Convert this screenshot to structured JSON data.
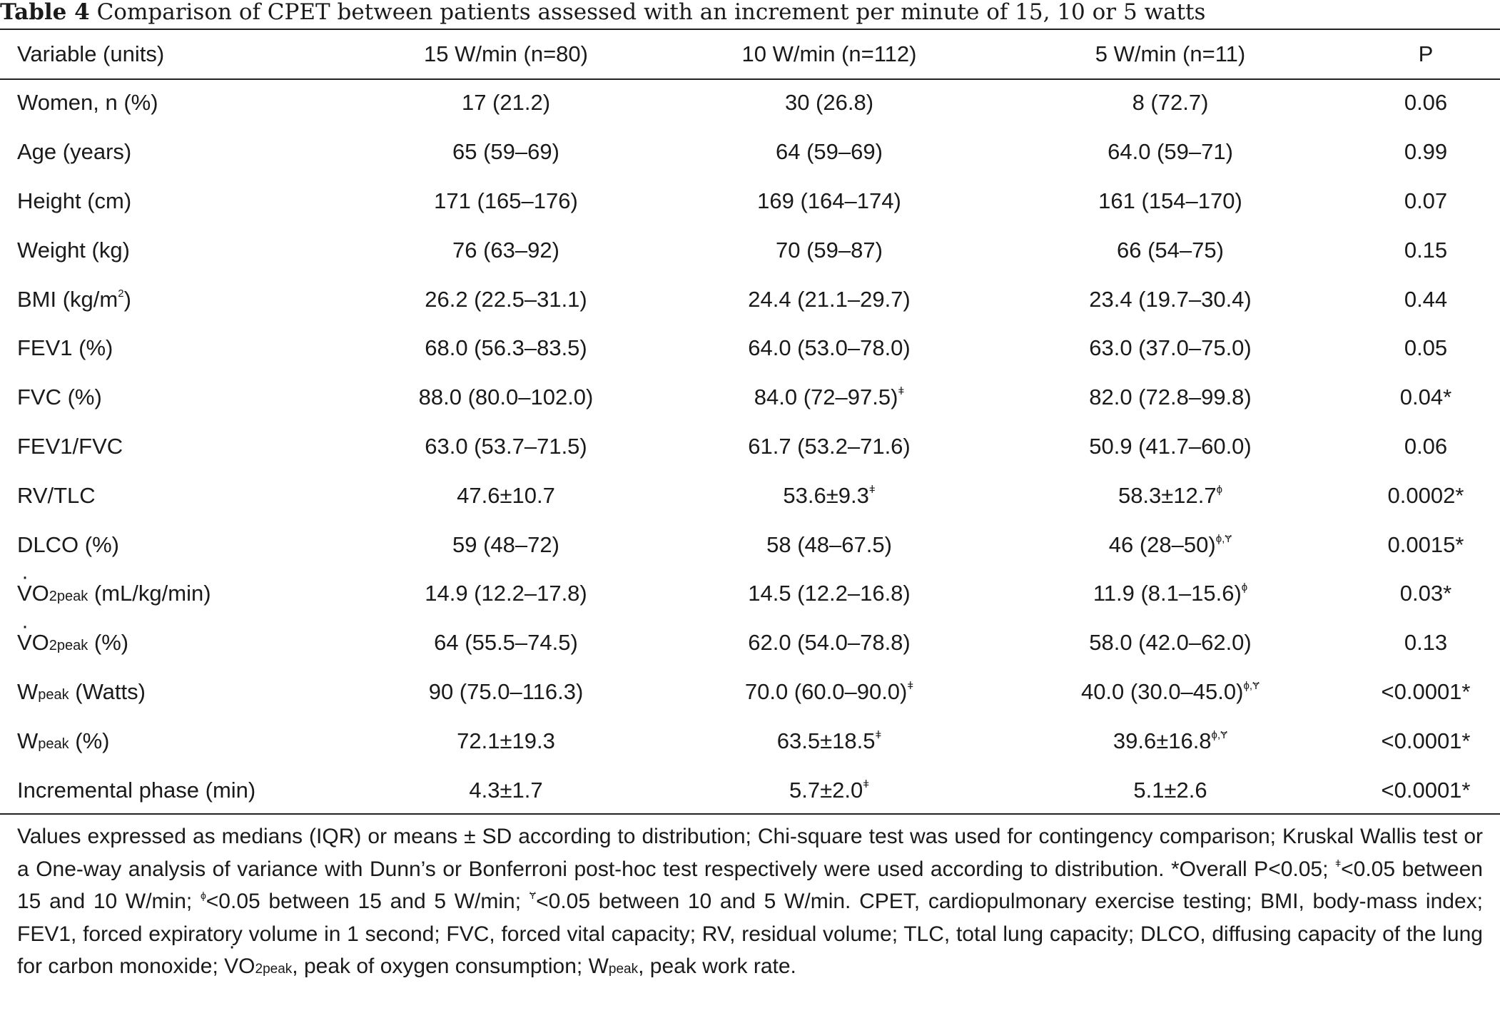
{
  "caption": {
    "label": "Table 4",
    "text": " Comparison of CPET between patients assessed with an increment per minute of 15, 10 or 5 watts"
  },
  "header": [
    "Variable (units)",
    "15 W/min (n=80)",
    "10 W/min (n=112)",
    "5 W/min (n=11)",
    "P"
  ],
  "rows": [
    {
      "var": "Women, n (%)",
      "c1": "17 (21.2)",
      "c2": "30 (26.8)",
      "c3": "8 (72.7)",
      "p": "0.06"
    },
    {
      "var": "Age (years)",
      "c1": "65 (59–69)",
      "c2": "64 (59–69)",
      "c3": "64.0 (59–71)",
      "p": "0.99"
    },
    {
      "var": "Height (cm)",
      "c1": "171 (165–176)",
      "c2": "169 (164–174)",
      "c3": "161 (154–170)",
      "p": "0.07"
    },
    {
      "var": "Weight (kg)",
      "c1": "76 (63–92)",
      "c2": "70 (59–87)",
      "c3": "66 (54–75)",
      "p": "0.15"
    },
    {
      "var": "BMI (kg/m",
      "var_sup": "2",
      "var_after": ")",
      "c1": "26.2 (22.5–31.1)",
      "c2": "24.4 (21.1–29.7)",
      "c3": "23.4 (19.7–30.4)",
      "p": "0.44"
    },
    {
      "var": "FEV1 (%)",
      "c1": "68.0 (56.3–83.5)",
      "c2": "64.0 (53.0–78.0)",
      "c3": "63.0 (37.0–75.0)",
      "p": "0.05"
    },
    {
      "var": "FVC (%)",
      "c1": "88.0 (80.0–102.0)",
      "c2": "84.0 (72–97.5)",
      "c2_sup": "ǂ",
      "c3": "82.0 (72.8–99.8)",
      "p": "0.04*"
    },
    {
      "var": "FEV1/FVC",
      "c1": "63.0 (53.7–71.5)",
      "c2": "61.7 (53.2–71.6)",
      "c3": "50.9 (41.7–60.0)",
      "p": "0.06"
    },
    {
      "var": "RV/TLC",
      "c1": "47.6±10.7",
      "c2": "53.6±9.3",
      "c2_sup": "ǂ",
      "c3": "58.3±12.7",
      "c3_sup": "ϕ",
      "p": "0.0002*"
    },
    {
      "var": "DLCO (%)",
      "c1": "59 (48–72)",
      "c2": "58 (48–67.5)",
      "c3": "46 (28–50)",
      "c3_sup": "ϕ,Ɏ",
      "p": "0.0015*"
    },
    {
      "var_main": "VO",
      "var_sub": "2peak",
      "var": " (mL/kg/min)",
      "c1": "14.9 (12.2–17.8)",
      "c2": "14.5 (12.2–16.8)",
      "c3": "11.9 (8.1–15.6)",
      "c3_sup": "ϕ",
      "p": "0.03*"
    },
    {
      "var_main": "VO",
      "var_sub": "2peak",
      "var": " (%)",
      "c1": "64 (55.5–74.5)",
      "c2": "62.0 (54.0–78.8)",
      "c3": "58.0 (42.0–62.0)",
      "p": "0.13"
    },
    {
      "var_main": "W",
      "var_sub": "peak",
      "var": " (Watts)",
      "c1": "90 (75.0–116.3)",
      "c2": "70.0 (60.0–90.0)",
      "c2_sup": "ǂ",
      "c3": "40.0 (30.0–45.0)",
      "c3_sup": "ϕ,Ɏ",
      "p": "<0.0001*"
    },
    {
      "var_main": "W",
      "var_sub": "peak",
      "var": " (%)",
      "c1": "72.1±19.3",
      "c2": "63.5±18.5",
      "c2_sup": "ǂ",
      "c3": "39.6±16.8",
      "c3_sup": "ϕ,Ɏ",
      "p": "<0.0001*"
    },
    {
      "var": "Incremental phase (min)",
      "c1": "4.3±1.7",
      "c2": "5.7±2.0",
      "c2_sup": "ǂ",
      "c3": "5.1±2.6",
      "p": "<0.0001*"
    }
  ],
  "footnote": {
    "p1": "Values expressed as medians (IQR) or means ± SD according to distribution; Chi-square test was used for contingency comparison; Kruskal Wallis test or a One-way analysis of variance with Dunn’s or Bonferroni post-hoc test respectively were used according to distribution. *Overall P<0.05; ",
    "s1": "ǂ",
    "p2": "<0.05 between 15 and 10 W/min; ",
    "s2": "ϕ",
    "p3": "<0.05 between 15 and 5 W/min; ",
    "s3": "Ɏ",
    "p4": "<0.05 between 10 and 5 W/min. CPET, cardiopulmonary exercise testing; BMI, body-mass index; FEV1, forced expiratory volume in 1 second; FVC, forced vital capacity; RV, residual volume; TLC, total lung capacity; DLCO, diffusing capacity of the lung for carbon monoxide; ",
    "vo": "VO",
    "vo_sub": "2peak",
    "p5": ", peak of oxygen consumption; ",
    "w": "W",
    "w_sub": "peak",
    "p6": ", peak work rate."
  }
}
